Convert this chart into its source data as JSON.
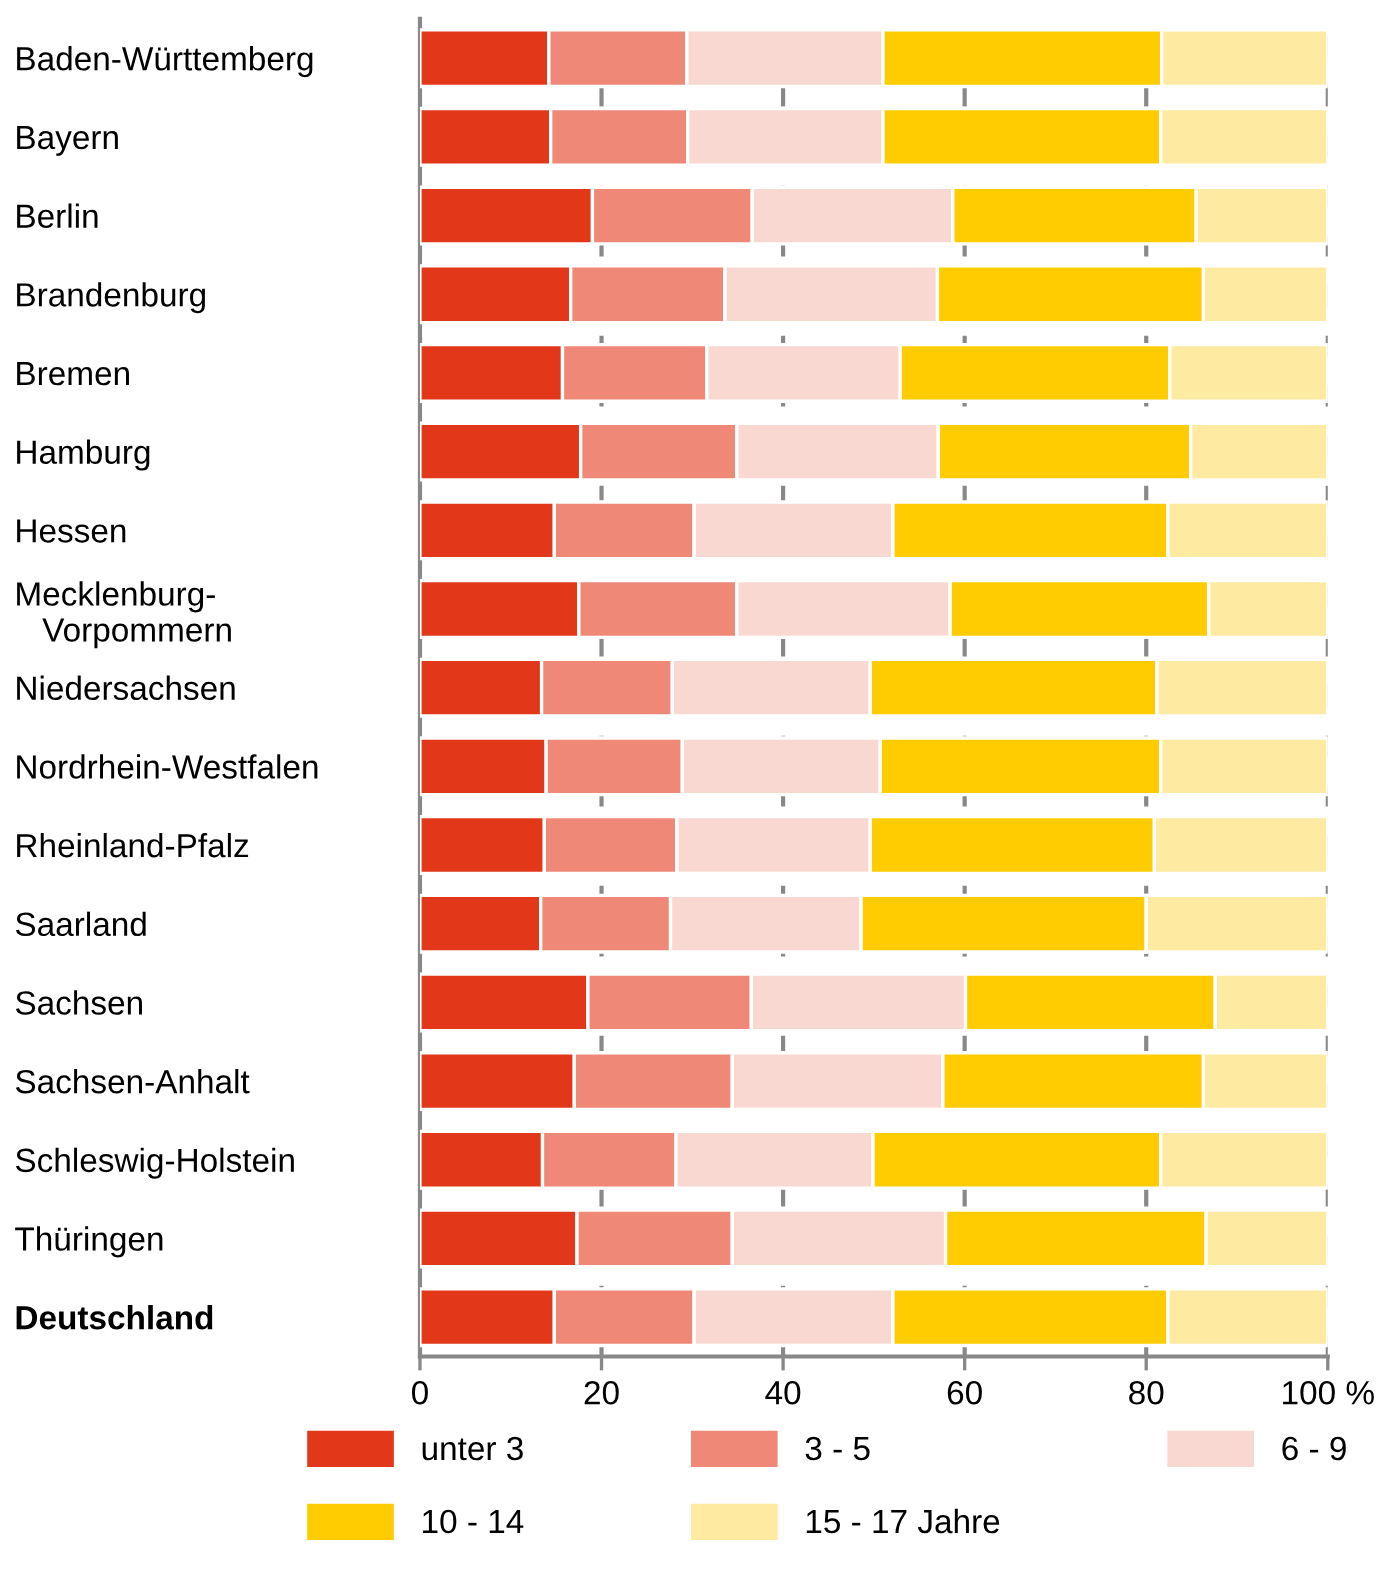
{
  "chart_data": {
    "type": "bar",
    "orientation": "horizontal",
    "stacked": true,
    "categories": [
      "Baden-Württemberg",
      "Bayern",
      "Berlin",
      "Brandenburg",
      "Bremen",
      "Hamburg",
      "Hessen",
      "Mecklenburg-\n   Vorpommern",
      "Niedersachsen",
      "Nordrhein-Westfalen",
      "Rheinland-Pfalz",
      "Saarland",
      "Sachsen",
      "Sachsen-Anhalt",
      "Schleswig-Holstein",
      "Thüringen",
      "Deutschland"
    ],
    "series": [
      {
        "name": "unter 3",
        "color": "#e3371a",
        "values": [
          14.2,
          14.4,
          19.0,
          16.6,
          15.7,
          17.7,
          14.8,
          17.5,
          13.4,
          13.9,
          13.7,
          13.3,
          18.5,
          17.0,
          13.5,
          17.3,
          14.8
        ]
      },
      {
        "name": "3 - 5",
        "color": "#ef8877",
        "values": [
          15.2,
          15.1,
          17.6,
          17.0,
          15.9,
          17.2,
          15.4,
          17.4,
          14.4,
          15.0,
          14.6,
          14.3,
          18.0,
          17.4,
          14.7,
          17.1,
          15.4
        ]
      },
      {
        "name": "6 - 9",
        "color": "#f9d8d2",
        "values": [
          21.6,
          21.5,
          22.1,
          23.4,
          21.3,
          22.2,
          21.9,
          23.5,
          21.8,
          21.8,
          21.3,
          21.0,
          23.6,
          23.2,
          21.7,
          23.5,
          21.9
        ]
      },
      {
        "name": "10 - 14",
        "color": "#fecc00",
        "values": [
          30.7,
          30.6,
          26.8,
          29.3,
          29.7,
          27.8,
          30.3,
          28.5,
          31.6,
          30.9,
          31.3,
          31.4,
          27.5,
          28.7,
          31.7,
          28.7,
          30.3
        ]
      },
      {
        "name": "15 - 17 Jahre",
        "color": "#feeaa0",
        "values": [
          18.3,
          18.4,
          14.5,
          13.7,
          17.4,
          15.1,
          17.6,
          13.1,
          18.8,
          18.4,
          19.1,
          20.0,
          12.4,
          13.7,
          18.4,
          13.4,
          17.6
        ]
      }
    ],
    "xlim": [
      0,
      100
    ],
    "xticks": [
      0,
      20,
      40,
      60,
      80,
      {
        "value": 100,
        "label": "100 %"
      }
    ],
    "grid": "x",
    "legend": "bottom"
  }
}
